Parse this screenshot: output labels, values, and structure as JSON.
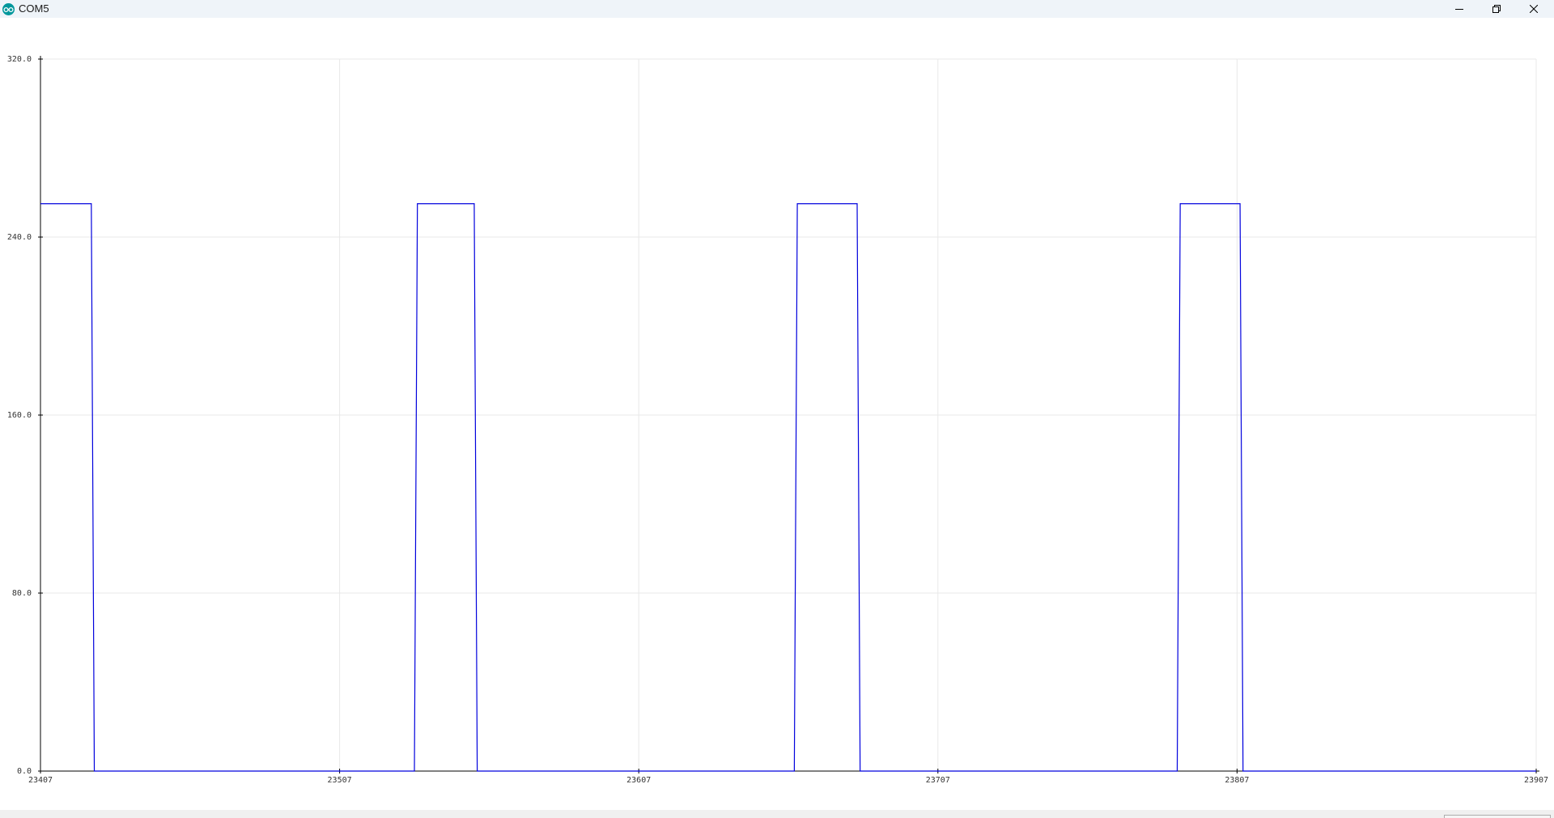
{
  "window": {
    "title": "COM5",
    "icon": "arduino-icon",
    "controls": [
      "minimize-icon",
      "restore-icon",
      "close-icon"
    ]
  },
  "colors": {
    "series": "#0000dd",
    "grid": "#e8e8e8",
    "axis": "#000000",
    "titlebar": "#eff4f9"
  },
  "chart_data": {
    "type": "line",
    "title": "",
    "xlabel": "",
    "ylabel": "",
    "xlim": [
      23407,
      23907
    ],
    "ylim": [
      0,
      320
    ],
    "grid": true,
    "legend": "none",
    "x_ticks": [
      {
        "value": 23407,
        "label": "23407"
      },
      {
        "value": 23507,
        "label": "23507"
      },
      {
        "value": 23607,
        "label": "23607"
      },
      {
        "value": 23707,
        "label": "23707"
      },
      {
        "value": 23807,
        "label": "23807"
      },
      {
        "value": 23907,
        "label": "23907"
      }
    ],
    "y_ticks": [
      {
        "value": 0,
        "label": "0.0"
      },
      {
        "value": 80,
        "label": "80.0"
      },
      {
        "value": 160,
        "label": "160.0"
      },
      {
        "value": 240,
        "label": "240.0"
      },
      {
        "value": 320,
        "label": "320.0"
      }
    ],
    "series": [
      {
        "color": "#0000dd",
        "points": [
          [
            23407,
            255
          ],
          [
            23424,
            255
          ],
          [
            23425,
            0
          ],
          [
            23532,
            0
          ],
          [
            23533,
            255
          ],
          [
            23552,
            255
          ],
          [
            23553,
            0
          ],
          [
            23659,
            0
          ],
          [
            23660,
            255
          ],
          [
            23680,
            255
          ],
          [
            23681,
            0
          ],
          [
            23787,
            0
          ],
          [
            23788,
            255
          ],
          [
            23808,
            255
          ],
          [
            23809,
            0
          ],
          [
            23907,
            0
          ]
        ]
      }
    ]
  }
}
